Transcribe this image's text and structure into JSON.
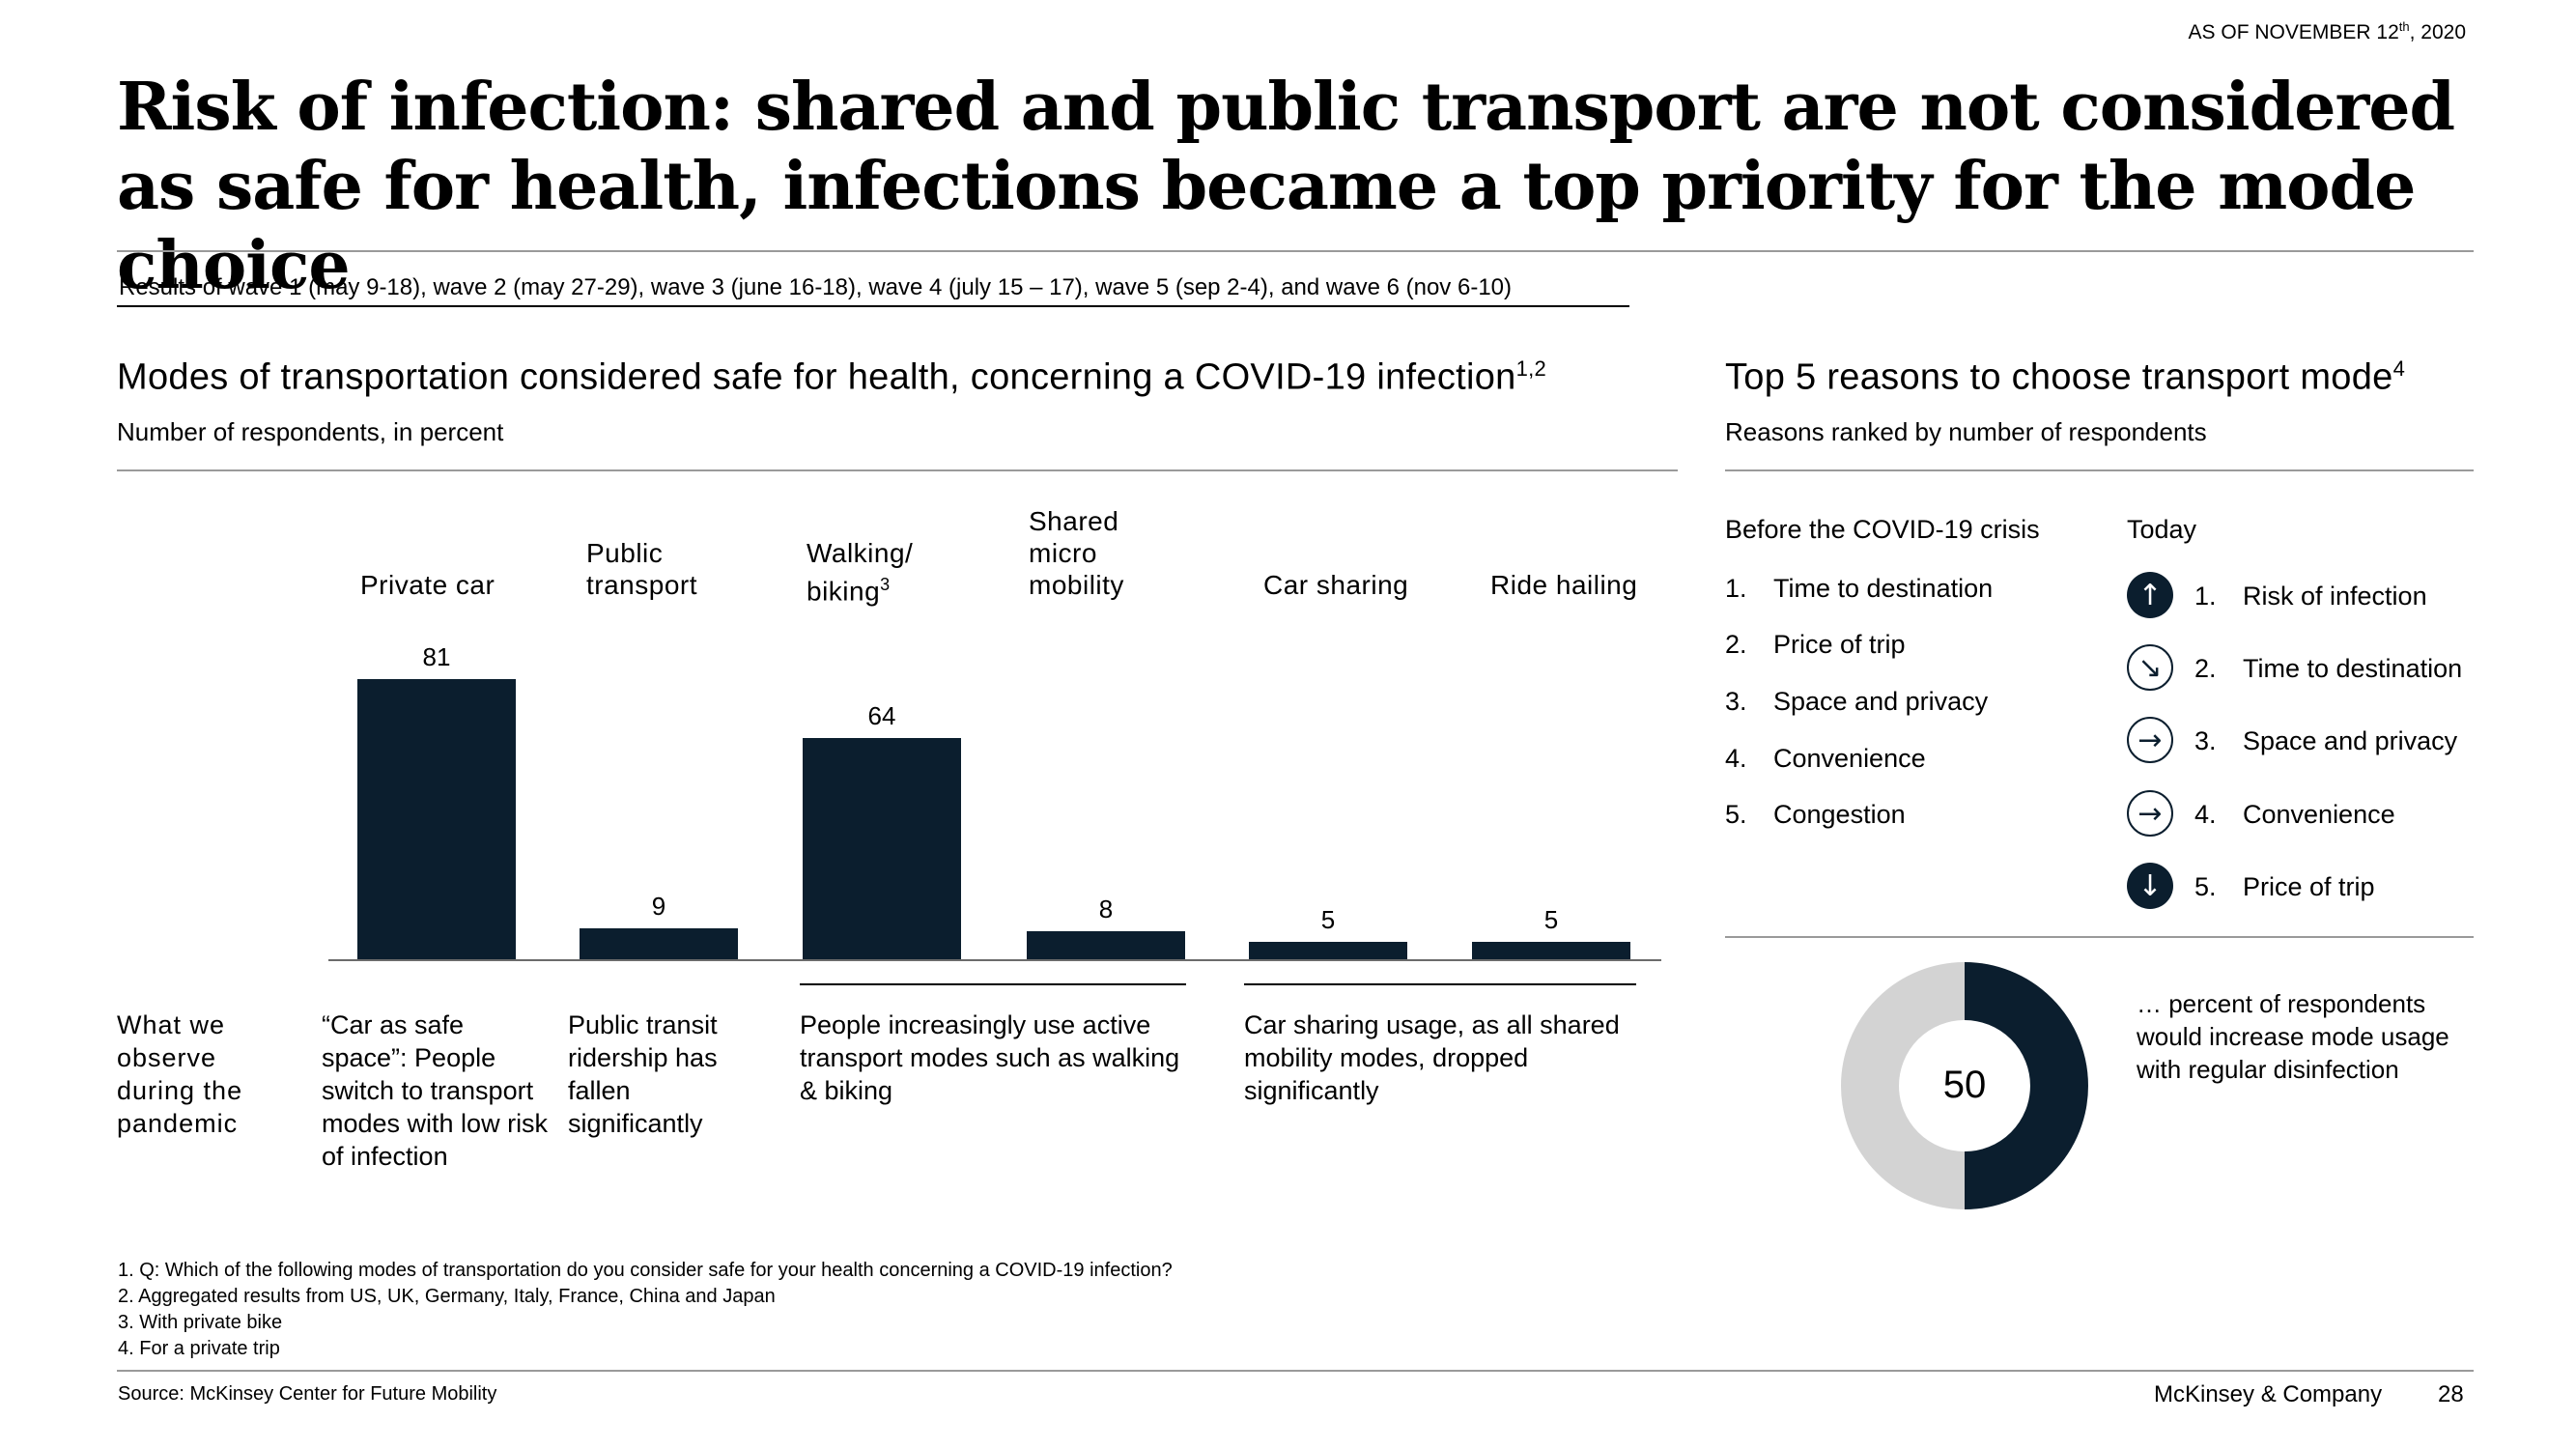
{
  "as_of": {
    "prefix": "AS OF NOVEMBER 12",
    "sup": "th",
    "suffix": ", 2020"
  },
  "title": "Risk of infection: shared and public transport are not considered as safe for health, infections became a top priority for the mode choice",
  "subtitle": "Results of wave 1 (may 9-18), wave 2 (may 27-29), wave 3 (june 16-18), wave 4 (july 15 – 17), wave 5 (sep 2-4), and wave 6 (nov 6-10)",
  "left_section": {
    "title": "Modes of transportation considered safe for health, concerning a COVID-19 infection",
    "title_sup": "1,2",
    "subtitle": "Number of respondents, in percent"
  },
  "chart_data": {
    "type": "bar",
    "title": "Modes of transportation considered safe for health, concerning a COVID-19 infection",
    "ylabel": "Number of respondents, in percent",
    "categories": [
      "Private car",
      "Public transport",
      "Walking/ biking",
      "Shared micro mobility",
      "Car sharing",
      "Ride hailing"
    ],
    "category_lines": [
      [
        "Private car"
      ],
      [
        "Public",
        "transport"
      ],
      [
        "Walking/",
        "biking"
      ],
      [
        "Shared",
        "micro",
        "mobility"
      ],
      [
        "Car sharing"
      ],
      [
        "Ride hailing"
      ]
    ],
    "category_sups": [
      "",
      "",
      "3",
      "",
      "",
      ""
    ],
    "values": [
      81,
      9,
      64,
      8,
      5,
      5
    ],
    "ylim": [
      0,
      81
    ],
    "grid": false,
    "legend": "none"
  },
  "observe": {
    "heading": "What we observe during the pandemic",
    "items": [
      "“Car as safe space”: People switch to transport modes with low risk of infection",
      "Public transit ridership has fallen significantly",
      "People increasingly use active transport modes such as walking & biking",
      "Car sharing usage, as all shared mobility modes, dropped significantly"
    ]
  },
  "right_section": {
    "title": "Top 5 reasons to choose transport mode",
    "title_sup": "4",
    "subtitle": "Reasons ranked by number of respondents",
    "before_heading": "Before the COVID-19 crisis",
    "today_heading": "Today",
    "before": [
      {
        "num": "1.",
        "label": "Time to destination"
      },
      {
        "num": "2.",
        "label": "Price of trip"
      },
      {
        "num": "3.",
        "label": "Space and privacy"
      },
      {
        "num": "4.",
        "label": "Convenience"
      },
      {
        "num": "5.",
        "label": "Congestion"
      }
    ],
    "today": [
      {
        "num": "1.",
        "label": "Risk of infection",
        "trend": "up",
        "icon": "arrow-up-icon"
      },
      {
        "num": "2.",
        "label": "Time to destination",
        "trend": "down-right",
        "icon": "arrow-down-right-icon"
      },
      {
        "num": "3.",
        "label": "Space and privacy",
        "trend": "right",
        "icon": "arrow-right-icon"
      },
      {
        "num": "4.",
        "label": "Convenience",
        "trend": "right",
        "icon": "arrow-right-icon"
      },
      {
        "num": "5.",
        "label": "Price of trip",
        "trend": "down",
        "icon": "arrow-down-icon"
      }
    ],
    "donut": {
      "value": 50,
      "label": "50",
      "caption": "… percent of respondents would increase mode usage with regular disinfection",
      "colors": {
        "fill": "#0b1e2e",
        "rest": "#d3d3d3"
      }
    }
  },
  "footnotes": [
    "1. Q: Which of the following modes of transportation do you consider safe for your health concerning a COVID-19 infection?",
    "2. Aggregated results from US, UK, Germany, Italy, France, China and Japan",
    "3. With private bike",
    "4. For a private trip"
  ],
  "footer": {
    "source": "Source: McKinsey Center for Future Mobility",
    "brand": "McKinsey & Company",
    "page": "28"
  },
  "colors": {
    "bar": "#0b1e2e",
    "rule": "#9a9a9a"
  }
}
